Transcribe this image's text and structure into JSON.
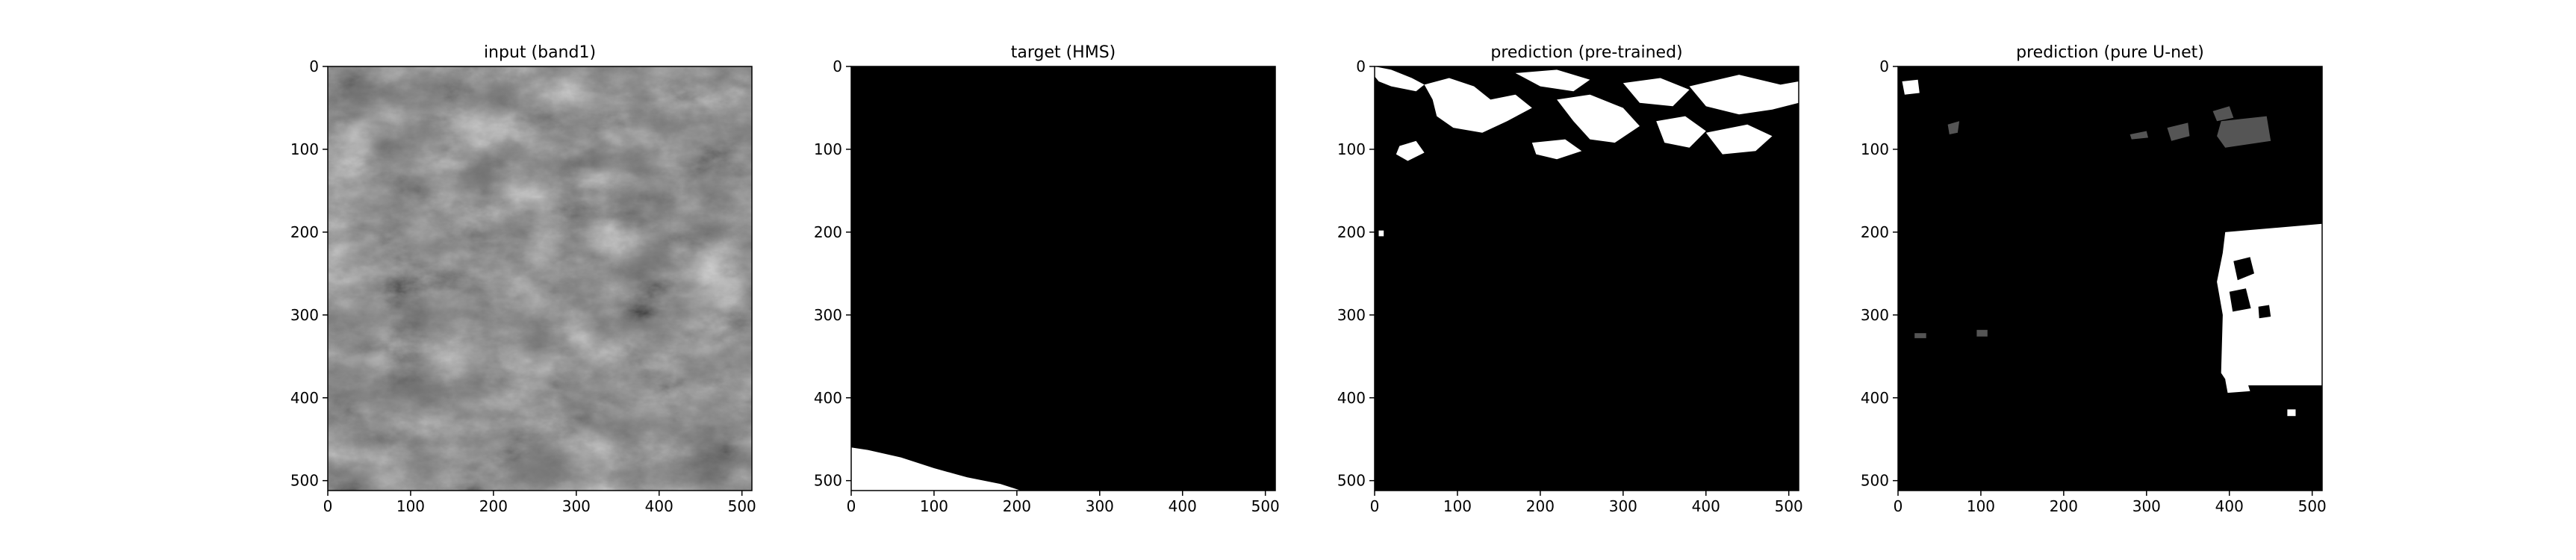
{
  "chart_data": [
    {
      "type": "heatmap",
      "title": "input (band1)",
      "xlabel": "",
      "ylabel": "",
      "xlim": [
        0,
        512
      ],
      "ylim": [
        512,
        0
      ],
      "xticks": [
        0,
        100,
        200,
        300,
        400,
        500
      ],
      "yticks": [
        0,
        100,
        200,
        300,
        400,
        500
      ],
      "colormap": "gray",
      "content": "grayscale satellite imagery",
      "grid": false,
      "regions": []
    },
    {
      "type": "heatmap",
      "title": "target (HMS)",
      "xlabel": "",
      "ylabel": "",
      "xlim": [
        0,
        512
      ],
      "ylim": [
        512,
        0
      ],
      "xticks": [
        0,
        100,
        200,
        300,
        400,
        500
      ],
      "yticks": [
        0,
        100,
        200,
        300,
        400,
        500
      ],
      "colormap": "binary",
      "background": "#000000",
      "grid": false,
      "regions": [
        {
          "fill": "#ffffff",
          "points": [
            [
              0,
              460
            ],
            [
              20,
              463
            ],
            [
              60,
              472
            ],
            [
              100,
              485
            ],
            [
              140,
              496
            ],
            [
              180,
              504
            ],
            [
              205,
              512
            ],
            [
              0,
              512
            ]
          ]
        }
      ]
    },
    {
      "type": "heatmap",
      "title": "prediction (pre-trained)",
      "xlabel": "",
      "ylabel": "",
      "xlim": [
        0,
        512
      ],
      "ylim": [
        512,
        0
      ],
      "xticks": [
        0,
        100,
        200,
        300,
        400,
        500
      ],
      "yticks": [
        0,
        100,
        200,
        300,
        400,
        500
      ],
      "colormap": "binary",
      "background": "#000000",
      "grid": false,
      "regions": [
        {
          "fill": "#ffffff",
          "points": [
            [
              0,
              0
            ],
            [
              20,
              4
            ],
            [
              45,
              14
            ],
            [
              60,
              22
            ],
            [
              50,
              30
            ],
            [
              20,
              24
            ],
            [
              5,
              18
            ],
            [
              0,
              12
            ]
          ]
        },
        {
          "fill": "#ffffff",
          "points": [
            [
              60,
              22
            ],
            [
              90,
              14
            ],
            [
              120,
              24
            ],
            [
              140,
              40
            ],
            [
              170,
              34
            ],
            [
              190,
              50
            ],
            [
              160,
              66
            ],
            [
              130,
              80
            ],
            [
              95,
              74
            ],
            [
              75,
              60
            ],
            [
              70,
              40
            ]
          ]
        },
        {
          "fill": "#ffffff",
          "points": [
            [
              170,
              8
            ],
            [
              220,
              4
            ],
            [
              260,
              16
            ],
            [
              240,
              30
            ],
            [
              200,
              24
            ]
          ]
        },
        {
          "fill": "#ffffff",
          "points": [
            [
              220,
              40
            ],
            [
              260,
              34
            ],
            [
              300,
              50
            ],
            [
              320,
              72
            ],
            [
              290,
              92
            ],
            [
              260,
              88
            ],
            [
              240,
              66
            ]
          ]
        },
        {
          "fill": "#ffffff",
          "points": [
            [
              300,
              20
            ],
            [
              345,
              14
            ],
            [
              380,
              28
            ],
            [
              360,
              48
            ],
            [
              320,
              44
            ]
          ]
        },
        {
          "fill": "#ffffff",
          "points": [
            [
              340,
              66
            ],
            [
              375,
              60
            ],
            [
              400,
              78
            ],
            [
              380,
              98
            ],
            [
              350,
              92
            ]
          ]
        },
        {
          "fill": "#ffffff",
          "points": [
            [
              380,
              24
            ],
            [
              440,
              10
            ],
            [
              490,
              22
            ],
            [
              512,
              18
            ],
            [
              512,
              44
            ],
            [
              480,
              52
            ],
            [
              440,
              58
            ],
            [
              400,
              48
            ]
          ]
        },
        {
          "fill": "#ffffff",
          "points": [
            [
              400,
              80
            ],
            [
              450,
              70
            ],
            [
              480,
              84
            ],
            [
              460,
              102
            ],
            [
              420,
              106
            ]
          ]
        },
        {
          "fill": "#ffffff",
          "points": [
            [
              30,
              96
            ],
            [
              50,
              90
            ],
            [
              60,
              104
            ],
            [
              40,
              114
            ],
            [
              26,
              106
            ]
          ]
        },
        {
          "fill": "#ffffff",
          "points": [
            [
              190,
              92
            ],
            [
              230,
              88
            ],
            [
              250,
              102
            ],
            [
              220,
              112
            ],
            [
              195,
              106
            ]
          ]
        },
        {
          "fill": "#ffffff",
          "points": [
            [
              5,
              198
            ],
            [
              11,
              198
            ],
            [
              11,
              205
            ],
            [
              5,
              205
            ]
          ]
        }
      ]
    },
    {
      "type": "heatmap",
      "title": "prediction (pure U-net)",
      "xlabel": "",
      "ylabel": "",
      "xlim": [
        0,
        512
      ],
      "ylim": [
        512,
        0
      ],
      "xticks": [
        0,
        100,
        200,
        300,
        400,
        500
      ],
      "yticks": [
        0,
        100,
        200,
        300,
        400,
        500
      ],
      "colormap": "binary",
      "background": "#000000",
      "grid": false,
      "regions": [
        {
          "fill": "#ffffff",
          "points": [
            [
              395,
              200
            ],
            [
              512,
              190
            ],
            [
              512,
              385
            ],
            [
              400,
              385
            ],
            [
              390,
              370
            ],
            [
              392,
              300
            ],
            [
              385,
              260
            ],
            [
              392,
              225
            ]
          ]
        },
        {
          "fill": "#000000",
          "points": [
            [
              405,
              235
            ],
            [
              425,
              230
            ],
            [
              430,
              250
            ],
            [
              410,
              258
            ]
          ]
        },
        {
          "fill": "#000000",
          "points": [
            [
              400,
              272
            ],
            [
              420,
              268
            ],
            [
              426,
              292
            ],
            [
              404,
              296
            ]
          ]
        },
        {
          "fill": "#000000",
          "points": [
            [
              435,
              290
            ],
            [
              448,
              288
            ],
            [
              450,
              302
            ],
            [
              436,
              304
            ]
          ]
        },
        {
          "fill": "#ffffff",
          "points": [
            [
              395,
              378
            ],
            [
              420,
              376
            ],
            [
              425,
              392
            ],
            [
              398,
              394
            ]
          ]
        },
        {
          "fill": "#ffffff",
          "points": [
            [
              470,
              414
            ],
            [
              480,
              414
            ],
            [
              480,
              422
            ],
            [
              470,
              422
            ]
          ]
        },
        {
          "fill": "#ffffff",
          "points": [
            [
              5,
              18
            ],
            [
              24,
              16
            ],
            [
              26,
              32
            ],
            [
              8,
              34
            ]
          ]
        },
        {
          "fill": "#555555",
          "points": [
            [
              60,
              70
            ],
            [
              74,
              66
            ],
            [
              72,
              80
            ],
            [
              62,
              82
            ]
          ]
        },
        {
          "fill": "#555555",
          "points": [
            [
              280,
              82
            ],
            [
              300,
              78
            ],
            [
              302,
              86
            ],
            [
              282,
              88
            ]
          ]
        },
        {
          "fill": "#555555",
          "points": [
            [
              325,
              74
            ],
            [
              350,
              68
            ],
            [
              352,
              84
            ],
            [
              330,
              90
            ]
          ]
        },
        {
          "fill": "#555555",
          "points": [
            [
              380,
              54
            ],
            [
              400,
              48
            ],
            [
              405,
              62
            ],
            [
              385,
              66
            ]
          ]
        },
        {
          "fill": "#555555",
          "points": [
            [
              390,
              66
            ],
            [
              445,
              60
            ],
            [
              450,
              90
            ],
            [
              395,
              98
            ],
            [
              385,
              84
            ]
          ]
        },
        {
          "fill": "#555555",
          "points": [
            [
              20,
              322
            ],
            [
              34,
              322
            ],
            [
              34,
              328
            ],
            [
              20,
              328
            ]
          ]
        },
        {
          "fill": "#555555",
          "points": [
            [
              95,
              318
            ],
            [
              108,
              318
            ],
            [
              108,
              326
            ],
            [
              95,
              326
            ]
          ]
        }
      ]
    }
  ]
}
